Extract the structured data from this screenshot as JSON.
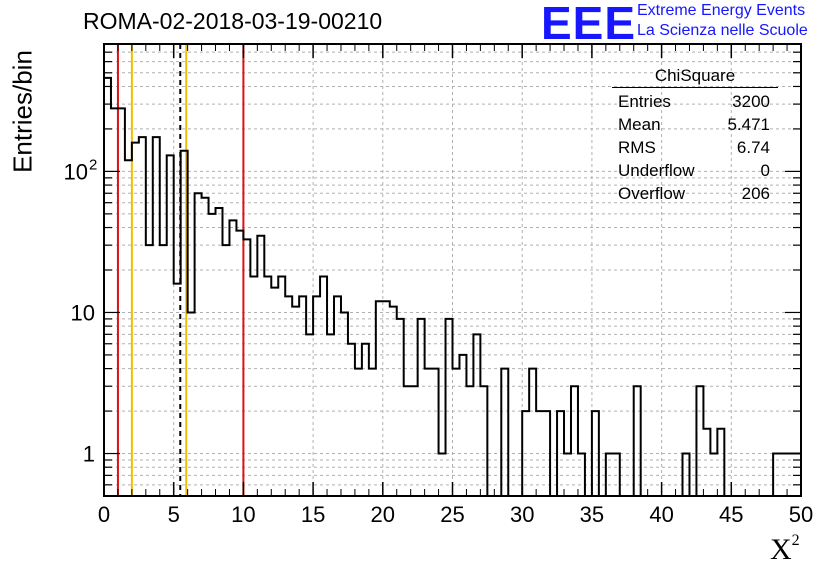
{
  "title": "ROMA-02-2018-03-19-00210",
  "logo": {
    "mark": "EEE",
    "line1": "Extreme Energy Events",
    "line2": "La Scienza nelle Scuole",
    "color": "#1616ff"
  },
  "stats": {
    "title": "ChiSquare",
    "rows": [
      {
        "label": "Entries",
        "value": "3200"
      },
      {
        "label": "Mean",
        "value": "5.471"
      },
      {
        "label": "RMS",
        "value": "6.74"
      },
      {
        "label": "Underflow",
        "value": "0"
      },
      {
        "label": "Overflow",
        "value": "206"
      }
    ]
  },
  "chart_data": {
    "type": "histogram",
    "title": "ROMA-02-2018-03-19-00210",
    "xlabel": "X",
    "xlabel_superscript": "2",
    "ylabel": "Entries/bin",
    "xlim": [
      0,
      50
    ],
    "ylim": [
      0.5,
      800
    ],
    "ylog": true,
    "grid": true,
    "bin_width": 0.5,
    "xticks": [
      0,
      5,
      10,
      15,
      20,
      25,
      30,
      35,
      40,
      45,
      50
    ],
    "yticks": [
      {
        "value": 1,
        "label": "1"
      },
      {
        "value": 10,
        "label": "10"
      },
      {
        "value": 100,
        "label": "10",
        "exponent": "2"
      }
    ],
    "counts": [
      460,
      280,
      280,
      120,
      160,
      175,
      30,
      175,
      30,
      130,
      16,
      140,
      10,
      70,
      65,
      50,
      55,
      30,
      45,
      38,
      33,
      18,
      35,
      18,
      15,
      18,
      13,
      11,
      13,
      7,
      13,
      18,
      7,
      13,
      10,
      6,
      4,
      6,
      4,
      12,
      12,
      11,
      9,
      3,
      3,
      9,
      4,
      4,
      1,
      9,
      4,
      5,
      3,
      7,
      3,
      0,
      0,
      4,
      0.5,
      0,
      2,
      4,
      2,
      2,
      0.5,
      2,
      1,
      3,
      1,
      0.5,
      2,
      0.5,
      1,
      1,
      0.5,
      0.5,
      3,
      0.5,
      0.5,
      0.5,
      0.5,
      0.5,
      0.5,
      1,
      0.5,
      3,
      1.5,
      1,
      1.5,
      0.5,
      0.5,
      0.5,
      0.5,
      0.5,
      0.5,
      0.5,
      1,
      1,
      1,
      1
    ],
    "vertical_lines": [
      {
        "x": 1,
        "style": "solid",
        "color": "#dd1111"
      },
      {
        "x": 2,
        "style": "solid",
        "color": "#f0c000"
      },
      {
        "x": 5.471,
        "style": "dashed",
        "color": "#000000"
      },
      {
        "x": 5.9,
        "style": "solid",
        "color": "#f0c000"
      },
      {
        "x": 10,
        "style": "solid",
        "color": "#dd1111"
      }
    ]
  }
}
